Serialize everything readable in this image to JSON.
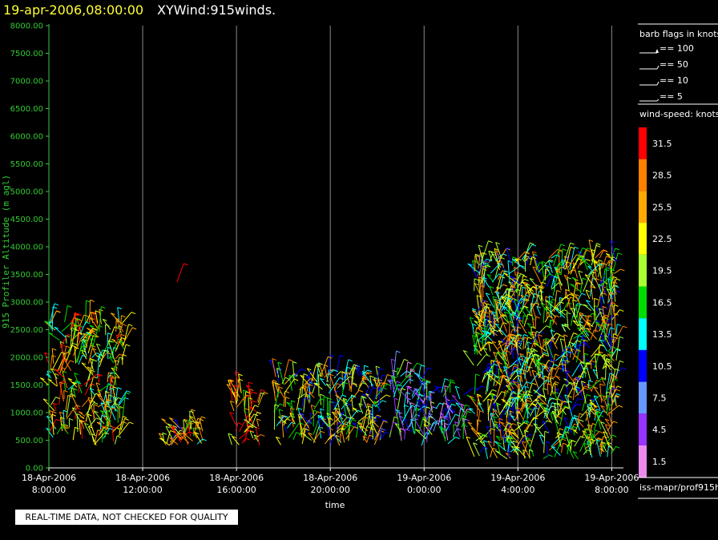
{
  "header": {
    "time_label": "19-apr-2006,08:00:00",
    "plot_title": "XYWind:915winds."
  },
  "notice": "REAL-TIME DATA, NOT CHECKED FOR QUALITY",
  "legend": {
    "barb_title": "barb flags in knots",
    "barbs": [
      {
        "label": "== 100"
      },
      {
        "label": "== 50"
      },
      {
        "label": "== 10"
      },
      {
        "label": "== 5"
      }
    ],
    "speed_title": "wind-speed: knots",
    "footer": "iss-mapr/prof915h"
  },
  "colors": {
    "axis": "#33cc33",
    "title_time": "#ffff33",
    "background": "#000000"
  },
  "chart_data": {
    "type": "scatter",
    "title": "XYWind:915winds.",
    "xlabel": "time",
    "ylabel": "915 Profiler Altitude (m agl)",
    "ylim": [
      0,
      8000
    ],
    "y_ticks": [
      "0.00",
      "500.00",
      "1000.00",
      "1500.00",
      "2000.00",
      "2500.00",
      "3000.00",
      "3500.00",
      "4000.00",
      "4500.00",
      "5000.00",
      "5500.00",
      "6000.00",
      "6500.00",
      "7000.00",
      "7500.00",
      "8000.00"
    ],
    "x_ticks": [
      {
        "line1": "18-Apr-2006",
        "line2": "8:00:00"
      },
      {
        "line1": "18-Apr-2006",
        "line2": "12:00:00"
      },
      {
        "line1": "18-Apr-2006",
        "line2": "16:00:00"
      },
      {
        "line1": "18-Apr-2006",
        "line2": "20:00:00"
      },
      {
        "line1": "19-Apr-2006",
        "line2": "0:00:00"
      },
      {
        "line1": "19-Apr-2006",
        "line2": "4:00:00"
      },
      {
        "line1": "19-Apr-2006",
        "line2": "8:00:00"
      }
    ],
    "x_hours": [
      0,
      4,
      8,
      12,
      16,
      20,
      24
    ],
    "xlim_hours": [
      0,
      24.5
    ],
    "vertical_grid": true,
    "color_scale": {
      "label": "wind-speed: knots",
      "levels": [
        "31.5",
        "28.5",
        "25.5",
        "22.5",
        "19.5",
        "16.5",
        "13.5",
        "10.5",
        "7.5",
        "4.5",
        "1.5"
      ],
      "colors": [
        "#ff0000",
        "#ff7f00",
        "#ffaa00",
        "#ffff00",
        "#aaff33",
        "#00dd00",
        "#00ffff",
        "#0000ff",
        "#6699ff",
        "#9933ff",
        "#ee88ee"
      ]
    },
    "wind_profile_groups": [
      {
        "start_hour": 0.0,
        "end_hour": 3.2,
        "z_min": 400,
        "z_max": 2700,
        "count": 240,
        "dominant_speed_kt": 22
      },
      {
        "start_hour": 4.9,
        "end_hour": 6.6,
        "z_min": 400,
        "z_max": 750,
        "count": 40,
        "dominant_speed_kt": 21
      },
      {
        "start_hour": 5.3,
        "end_hour": 5.5,
        "z_min": 3300,
        "z_max": 3500,
        "count": 1,
        "dominant_speed_kt": 31
      },
      {
        "start_hour": 7.8,
        "end_hour": 9.0,
        "z_min": 400,
        "z_max": 1400,
        "count": 45,
        "dominant_speed_kt": 27
      },
      {
        "start_hour": 9.6,
        "end_hour": 14.2,
        "z_min": 400,
        "z_max": 1700,
        "count": 220,
        "dominant_speed_kt": 19
      },
      {
        "start_hour": 14.5,
        "end_hour": 16.4,
        "z_min": 400,
        "z_max": 1700,
        "count": 80,
        "dominant_speed_kt": 12
      },
      {
        "start_hour": 16.5,
        "end_hour": 17.8,
        "z_min": 400,
        "z_max": 1400,
        "count": 40,
        "dominant_speed_kt": 9
      },
      {
        "start_hour": 18.1,
        "end_hour": 24.2,
        "z_min": 150,
        "z_max": 3800,
        "count": 900,
        "dominant_speed_kt": 20
      }
    ]
  }
}
